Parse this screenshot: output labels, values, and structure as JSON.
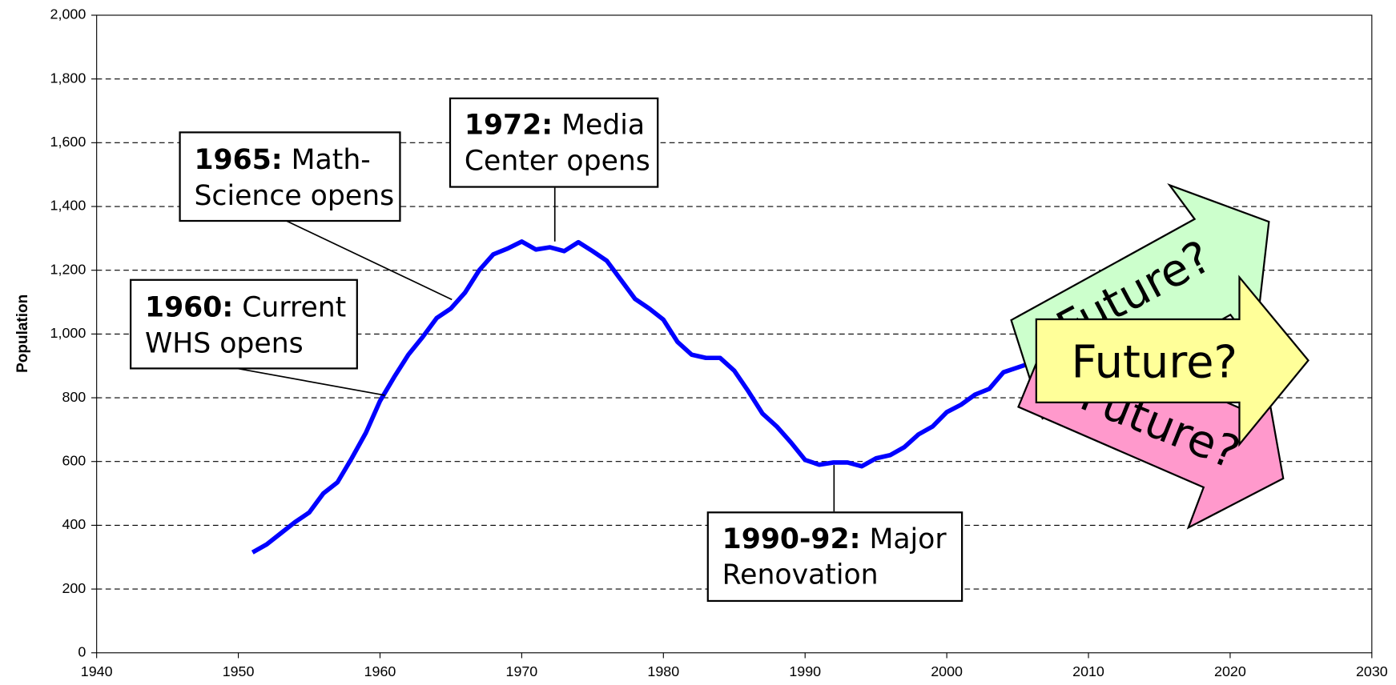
{
  "chart_data": {
    "type": "line",
    "ylabel": "Population",
    "x": [
      1951,
      1952,
      1953,
      1954,
      1955,
      1956,
      1957,
      1958,
      1959,
      1960,
      1961,
      1962,
      1963,
      1964,
      1965,
      1966,
      1967,
      1968,
      1969,
      1970,
      1971,
      1972,
      1973,
      1974,
      1975,
      1976,
      1977,
      1978,
      1979,
      1980,
      1981,
      1982,
      1983,
      1984,
      1985,
      1986,
      1987,
      1988,
      1989,
      1990,
      1991,
      1992,
      1993,
      1994,
      1995,
      1996,
      1997,
      1998,
      1999,
      2000,
      2001,
      2002,
      2003,
      2004,
      2005,
      2006,
      2007
    ],
    "series": [
      {
        "name": "Population",
        "color": "#0000ff",
        "values": [
          315,
          340,
          375,
          410,
          440,
          500,
          535,
          610,
          690,
          790,
          865,
          935,
          990,
          1050,
          1080,
          1130,
          1200,
          1250,
          1268,
          1290,
          1265,
          1272,
          1260,
          1288,
          1260,
          1230,
          1170,
          1110,
          1080,
          1045,
          975,
          935,
          925,
          925,
          885,
          820,
          750,
          710,
          660,
          605,
          590,
          597,
          597,
          585,
          610,
          620,
          645,
          685,
          710,
          755,
          778,
          810,
          828,
          880,
          895,
          910,
          925
        ]
      }
    ],
    "xlim": [
      1940,
      2030
    ],
    "xticks": [
      1940,
      1950,
      1960,
      1970,
      1980,
      1990,
      2000,
      2010,
      2020,
      2030
    ],
    "ylim": [
      0,
      2000
    ],
    "yticks": [
      0,
      200,
      400,
      600,
      800,
      {
        "value": 1000,
        "label": "1,000"
      },
      {
        "value": 1200,
        "label": "1,200"
      },
      {
        "value": 1400,
        "label": "1,400"
      },
      {
        "value": 1600,
        "label": "1,600"
      },
      {
        "value": 1800,
        "label": "1,800"
      },
      {
        "value": 2000,
        "label": "2,000"
      }
    ],
    "grid": true,
    "annotations": [
      {
        "bold": "1960:",
        "line1": "Current",
        "line2": "WHS opens"
      },
      {
        "bold": "1965:",
        "line1": "Math-",
        "line2": "Science opens"
      },
      {
        "bold": "1972:",
        "line1": "Media",
        "line2": "Center opens"
      },
      {
        "bold": "1990-92:",
        "line1": "Major",
        "line2": "Renovation"
      }
    ],
    "arrows": [
      "Future?",
      "Future?",
      "Future?"
    ]
  }
}
